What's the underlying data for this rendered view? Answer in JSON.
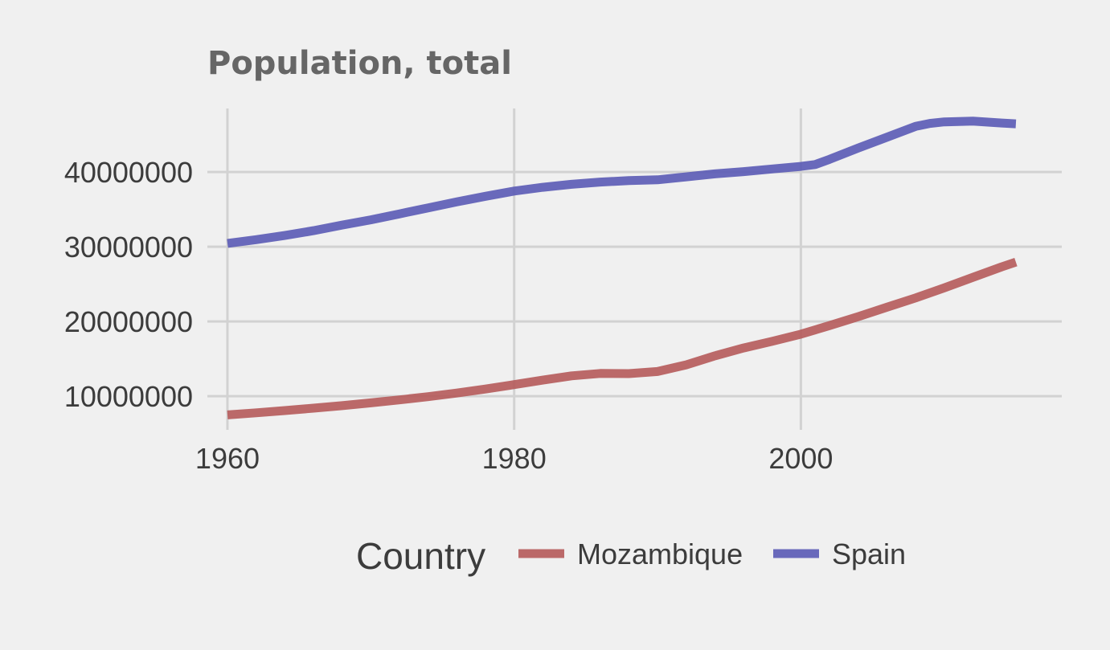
{
  "chart_data": {
    "type": "line",
    "title": "Population, total",
    "xlabel": "",
    "ylabel": "",
    "xlim": [
      1958.6,
      2018.2
    ],
    "ylim": [
      5500000,
      48500000
    ],
    "x_ticks": [
      1960,
      1980,
      2000
    ],
    "y_ticks": [
      10000000,
      20000000,
      30000000,
      40000000
    ],
    "x_tick_labels": [
      "1960",
      "1980",
      "2000"
    ],
    "y_tick_labels": [
      "10000000",
      "20000000",
      "30000000",
      "40000000"
    ],
    "grid": true,
    "legend": {
      "title": "Country",
      "position": "bottom"
    },
    "series": [
      {
        "name": "Mozambique",
        "color": "#b55a5a",
        "x": [
          1960,
          1962,
          1964,
          1966,
          1968,
          1970,
          1972,
          1974,
          1976,
          1978,
          1980,
          1982,
          1984,
          1986,
          1988,
          1990,
          1992,
          1994,
          1996,
          1998,
          2000,
          2002,
          2004,
          2006,
          2008,
          2010,
          2012,
          2014,
          2015
        ],
        "values": [
          7500000,
          7780000,
          8080000,
          8400000,
          8740000,
          9110000,
          9510000,
          9940000,
          10420000,
          10960000,
          11550000,
          12150000,
          12720000,
          13050000,
          13020000,
          13300000,
          14200000,
          15400000,
          16450000,
          17350000,
          18300000,
          19450000,
          20650000,
          21900000,
          23150000,
          24500000,
          25900000,
          27300000,
          27950000
        ]
      },
      {
        "name": "Spain",
        "color": "#5a5ab5",
        "x": [
          1960,
          1962,
          1964,
          1966,
          1968,
          1970,
          1972,
          1974,
          1976,
          1978,
          1980,
          1982,
          1984,
          1986,
          1988,
          1990,
          1992,
          1994,
          1996,
          1998,
          2000,
          2001,
          2002,
          2004,
          2006,
          2008,
          2009,
          2010,
          2012,
          2014,
          2015
        ],
        "values": [
          30450000,
          30950000,
          31500000,
          32150000,
          32900000,
          33600000,
          34400000,
          35200000,
          36000000,
          36750000,
          37450000,
          37950000,
          38350000,
          38650000,
          38850000,
          38950000,
          39350000,
          39750000,
          40050000,
          40400000,
          40750000,
          41000000,
          41700000,
          43200000,
          44650000,
          46100000,
          46500000,
          46700000,
          46800000,
          46550000,
          46450000
        ]
      }
    ]
  }
}
